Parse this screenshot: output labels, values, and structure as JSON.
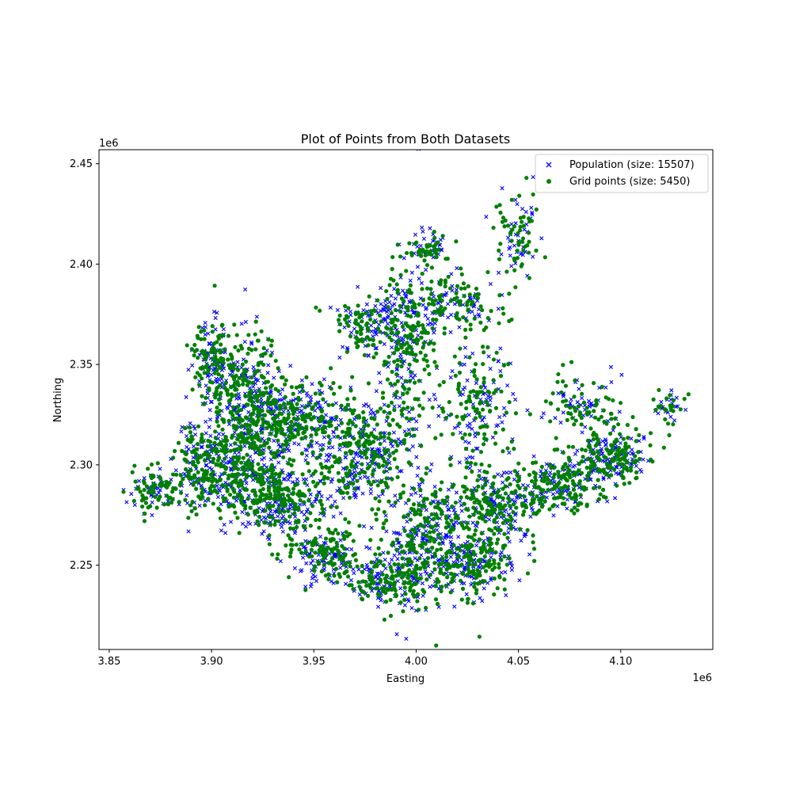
{
  "chart_data": {
    "type": "scatter",
    "title": "Plot of Points from Both Datasets",
    "xlabel": "Easting",
    "ylabel": "Northing",
    "x_offset_label": "1e6",
    "y_offset_label": "1e6",
    "xlim": [
      3.845,
      4.145
    ],
    "ylim": [
      2.208,
      2.457
    ],
    "x_ticks": [
      3.85,
      3.9,
      3.95,
      4.0,
      4.05,
      4.1
    ],
    "x_tick_labels": [
      "3.85",
      "3.90",
      "3.95",
      "4.00",
      "4.05",
      "4.10"
    ],
    "y_ticks": [
      2.25,
      2.3,
      2.35,
      2.4,
      2.45
    ],
    "y_tick_labels": [
      "2.25",
      "2.30",
      "2.35",
      "2.40",
      "2.45"
    ],
    "grid": false,
    "legend_position": "top-right",
    "series": [
      {
        "name": "Population (size: 15507)",
        "marker": "x",
        "color": "#0000ff",
        "clusters": [
          {
            "x": 3.872,
            "y": 2.289,
            "rx": 0.012,
            "ry": 0.011,
            "n": 55
          },
          {
            "x": 3.893,
            "y": 2.298,
            "rx": 0.01,
            "ry": 0.02,
            "n": 80
          },
          {
            "x": 3.9,
            "y": 2.352,
            "rx": 0.008,
            "ry": 0.018,
            "n": 70
          },
          {
            "x": 3.915,
            "y": 2.335,
            "rx": 0.018,
            "ry": 0.028,
            "n": 160
          },
          {
            "x": 3.915,
            "y": 2.3,
            "rx": 0.018,
            "ry": 0.022,
            "n": 160
          },
          {
            "x": 3.94,
            "y": 2.323,
            "rx": 0.022,
            "ry": 0.018,
            "n": 160
          },
          {
            "x": 3.935,
            "y": 2.283,
            "rx": 0.02,
            "ry": 0.02,
            "n": 150
          },
          {
            "x": 3.958,
            "y": 2.255,
            "rx": 0.016,
            "ry": 0.012,
            "n": 90
          },
          {
            "x": 3.975,
            "y": 2.305,
            "rx": 0.02,
            "ry": 0.028,
            "n": 180
          },
          {
            "x": 3.985,
            "y": 2.242,
            "rx": 0.016,
            "ry": 0.012,
            "n": 80
          },
          {
            "x": 4.005,
            "y": 2.262,
            "rx": 0.02,
            "ry": 0.03,
            "n": 190
          },
          {
            "x": 4.03,
            "y": 2.252,
            "rx": 0.018,
            "ry": 0.016,
            "n": 110
          },
          {
            "x": 4.04,
            "y": 2.28,
            "rx": 0.02,
            "ry": 0.016,
            "n": 120
          },
          {
            "x": 3.995,
            "y": 2.36,
            "rx": 0.012,
            "ry": 0.04,
            "n": 130
          },
          {
            "x": 3.975,
            "y": 2.37,
            "rx": 0.016,
            "ry": 0.012,
            "n": 60
          },
          {
            "x": 4.018,
            "y": 2.38,
            "rx": 0.02,
            "ry": 0.014,
            "n": 70
          },
          {
            "x": 4.03,
            "y": 2.33,
            "rx": 0.018,
            "ry": 0.025,
            "n": 90
          },
          {
            "x": 4.07,
            "y": 2.29,
            "rx": 0.02,
            "ry": 0.012,
            "n": 110
          },
          {
            "x": 4.095,
            "y": 2.303,
            "rx": 0.015,
            "ry": 0.012,
            "n": 110
          },
          {
            "x": 4.08,
            "y": 2.33,
            "rx": 0.018,
            "ry": 0.014,
            "n": 45
          },
          {
            "x": 4.125,
            "y": 2.33,
            "rx": 0.008,
            "ry": 0.007,
            "n": 18
          },
          {
            "x": 4.05,
            "y": 2.415,
            "rx": 0.01,
            "ry": 0.022,
            "n": 40
          },
          {
            "x": 4.005,
            "y": 2.408,
            "rx": 0.01,
            "ry": 0.008,
            "n": 30
          }
        ]
      },
      {
        "name": "Grid points (size: 5450)",
        "marker": "o",
        "color": "#008000",
        "clusters": [
          {
            "x": 3.872,
            "y": 2.289,
            "rx": 0.012,
            "ry": 0.011,
            "n": 70
          },
          {
            "x": 3.893,
            "y": 2.298,
            "rx": 0.01,
            "ry": 0.02,
            "n": 100
          },
          {
            "x": 3.9,
            "y": 2.352,
            "rx": 0.008,
            "ry": 0.018,
            "n": 90
          },
          {
            "x": 3.915,
            "y": 2.335,
            "rx": 0.018,
            "ry": 0.028,
            "n": 200
          },
          {
            "x": 3.915,
            "y": 2.3,
            "rx": 0.018,
            "ry": 0.022,
            "n": 200
          },
          {
            "x": 3.94,
            "y": 2.323,
            "rx": 0.022,
            "ry": 0.018,
            "n": 200
          },
          {
            "x": 3.935,
            "y": 2.283,
            "rx": 0.02,
            "ry": 0.02,
            "n": 190
          },
          {
            "x": 3.958,
            "y": 2.255,
            "rx": 0.016,
            "ry": 0.012,
            "n": 110
          },
          {
            "x": 3.975,
            "y": 2.305,
            "rx": 0.02,
            "ry": 0.028,
            "n": 220
          },
          {
            "x": 3.985,
            "y": 2.242,
            "rx": 0.016,
            "ry": 0.012,
            "n": 100
          },
          {
            "x": 4.005,
            "y": 2.262,
            "rx": 0.02,
            "ry": 0.03,
            "n": 230
          },
          {
            "x": 4.03,
            "y": 2.252,
            "rx": 0.018,
            "ry": 0.016,
            "n": 140
          },
          {
            "x": 4.04,
            "y": 2.28,
            "rx": 0.02,
            "ry": 0.016,
            "n": 150
          },
          {
            "x": 3.995,
            "y": 2.36,
            "rx": 0.012,
            "ry": 0.04,
            "n": 160
          },
          {
            "x": 3.975,
            "y": 2.37,
            "rx": 0.016,
            "ry": 0.012,
            "n": 80
          },
          {
            "x": 4.018,
            "y": 2.38,
            "rx": 0.02,
            "ry": 0.014,
            "n": 90
          },
          {
            "x": 4.03,
            "y": 2.33,
            "rx": 0.018,
            "ry": 0.025,
            "n": 110
          },
          {
            "x": 4.07,
            "y": 2.29,
            "rx": 0.02,
            "ry": 0.012,
            "n": 140
          },
          {
            "x": 4.095,
            "y": 2.303,
            "rx": 0.015,
            "ry": 0.012,
            "n": 140
          },
          {
            "x": 4.08,
            "y": 2.33,
            "rx": 0.018,
            "ry": 0.014,
            "n": 60
          },
          {
            "x": 4.125,
            "y": 2.33,
            "rx": 0.008,
            "ry": 0.007,
            "n": 24
          },
          {
            "x": 4.05,
            "y": 2.415,
            "rx": 0.01,
            "ry": 0.022,
            "n": 55
          },
          {
            "x": 4.005,
            "y": 2.408,
            "rx": 0.01,
            "ry": 0.008,
            "n": 40
          }
        ]
      }
    ]
  }
}
